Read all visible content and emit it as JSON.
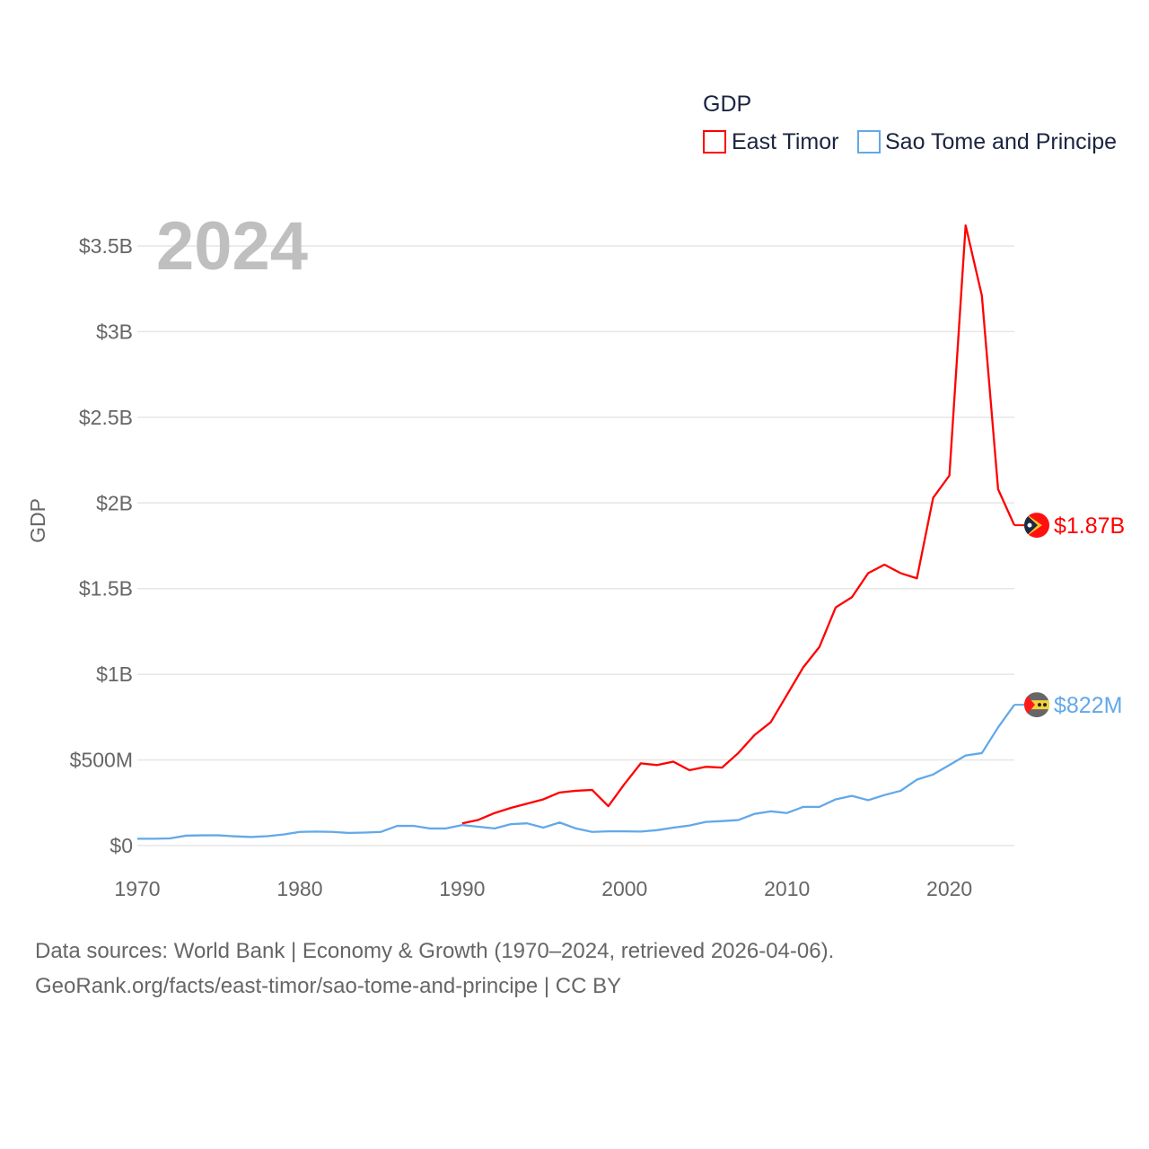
{
  "chart_data": {
    "type": "line",
    "title": "GDP",
    "ylabel": "GDP",
    "xlabel": "",
    "year_label": "2024",
    "xlim": [
      1970,
      2024
    ],
    "ylim": [
      0,
      3.5
    ],
    "y_unit": "billion USD",
    "grid": true,
    "legend_placement": "top-right",
    "x_ticks": [
      1970,
      1980,
      1990,
      2000,
      2010,
      2020
    ],
    "y_ticks": [
      {
        "value": 0,
        "label": "$0"
      },
      {
        "value": 0.5,
        "label": "$500M"
      },
      {
        "value": 1,
        "label": "$1B"
      },
      {
        "value": 1.5,
        "label": "$1.5B"
      },
      {
        "value": 2,
        "label": "$2B"
      },
      {
        "value": 2.5,
        "label": "$2.5B"
      },
      {
        "value": 3,
        "label": "$3B"
      },
      {
        "value": 3.5,
        "label": "$3.5B"
      }
    ],
    "series": [
      {
        "name": "East Timor",
        "color": "#ff0000",
        "end_label": "$1.87B",
        "x": [
          1990,
          1991,
          1992,
          1993,
          1994,
          1995,
          1996,
          1997,
          1998,
          1999,
          2000,
          2001,
          2002,
          2003,
          2004,
          2005,
          2006,
          2007,
          2008,
          2009,
          2010,
          2011,
          2012,
          2013,
          2014,
          2015,
          2016,
          2017,
          2018,
          2019,
          2020,
          2021,
          2022,
          2023,
          2024
        ],
        "values": [
          0.13,
          0.15,
          0.19,
          0.22,
          0.245,
          0.27,
          0.31,
          0.32,
          0.325,
          0.23,
          0.36,
          0.48,
          0.47,
          0.49,
          0.44,
          0.46,
          0.455,
          0.54,
          0.645,
          0.72,
          0.88,
          1.04,
          1.16,
          1.39,
          1.45,
          1.59,
          1.64,
          1.59,
          1.56,
          2.03,
          2.16,
          3.62,
          3.21,
          2.08,
          1.87
        ]
      },
      {
        "name": "Sao Tome and Principe",
        "color": "#62a8ea",
        "end_label": "$822M",
        "x": [
          1970,
          1971,
          1972,
          1973,
          1974,
          1975,
          1976,
          1977,
          1978,
          1979,
          1980,
          1981,
          1982,
          1983,
          1984,
          1985,
          1986,
          1987,
          1988,
          1989,
          1990,
          1991,
          1992,
          1993,
          1994,
          1995,
          1996,
          1997,
          1998,
          1999,
          2000,
          2001,
          2002,
          2003,
          2004,
          2005,
          2006,
          2007,
          2008,
          2009,
          2010,
          2011,
          2012,
          2013,
          2014,
          2015,
          2016,
          2017,
          2018,
          2019,
          2020,
          2021,
          2022,
          2023,
          2024
        ],
        "values": [
          0.04,
          0.04,
          0.042,
          0.058,
          0.06,
          0.06,
          0.054,
          0.05,
          0.055,
          0.065,
          0.08,
          0.082,
          0.08,
          0.074,
          0.076,
          0.08,
          0.115,
          0.115,
          0.1,
          0.1,
          0.12,
          0.11,
          0.1,
          0.125,
          0.13,
          0.105,
          0.135,
          0.1,
          0.08,
          0.083,
          0.083,
          0.082,
          0.09,
          0.105,
          0.117,
          0.138,
          0.143,
          0.149,
          0.185,
          0.2,
          0.19,
          0.226,
          0.226,
          0.27,
          0.29,
          0.265,
          0.295,
          0.32,
          0.385,
          0.415,
          0.47,
          0.526,
          0.54,
          0.69,
          0.822
        ]
      }
    ]
  },
  "footer": {
    "line1": "Data sources: World Bank | Economy & Growth (1970–2024, retrieved 2026-04-06).",
    "line2": "GeoRank.org/facts/east-timor/sao-tome-and-principe | CC BY"
  }
}
